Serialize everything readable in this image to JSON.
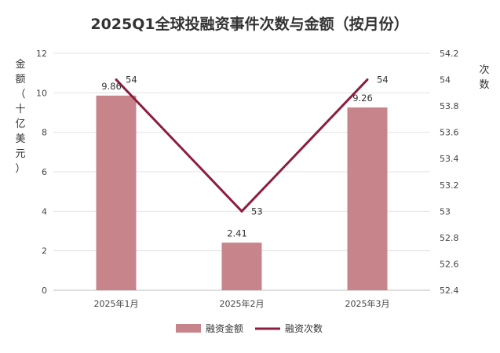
{
  "chart_data": {
    "type": "bar",
    "title": "2025Q1全球投融资事件次数与金额（按月份）",
    "categories": [
      "2025年1月",
      "2025年2月",
      "2025年3月"
    ],
    "series": [
      {
        "name": "融资金额",
        "type": "bar",
        "axis": "left",
        "values": [
          9.86,
          2.41,
          9.26
        ],
        "labels": [
          "9.86",
          "2.41",
          "9.26"
        ]
      },
      {
        "name": "融资次数",
        "type": "line",
        "axis": "right",
        "values": [
          54,
          53,
          54
        ],
        "labels": [
          "54",
          "53",
          "54"
        ]
      }
    ],
    "ylabel": "金额（十亿美元）",
    "y2label": "次数",
    "ylim": [
      0,
      12
    ],
    "y2lim": [
      52.4,
      54.2
    ],
    "yticks": [
      "0",
      "2",
      "4",
      "6",
      "8",
      "10",
      "12"
    ],
    "y2ticks": [
      "52.4",
      "52.6",
      "52.8",
      "53",
      "53.2",
      "53.4",
      "53.6",
      "53.8",
      "54",
      "54.2"
    ],
    "grid": true,
    "legend": "bottom",
    "colors": {
      "bar": "#c7858b",
      "line": "#8b1e3f"
    }
  }
}
